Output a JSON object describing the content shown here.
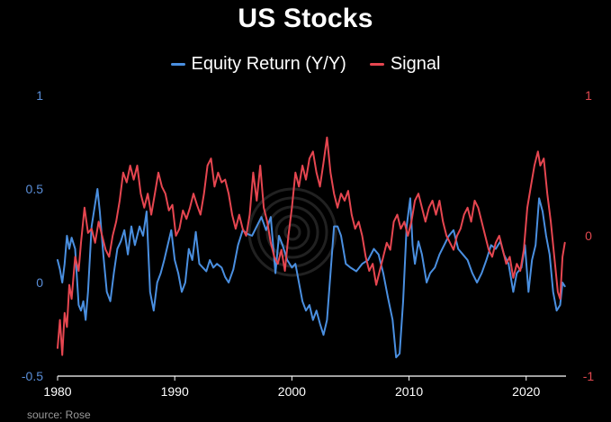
{
  "source": "source: Rose",
  "colors": {
    "background": "#000000",
    "equity": "#4a8fe0",
    "signal": "#e64650",
    "axis_left": "#5a8ed8",
    "axis_right": "#e0484f",
    "x_axis_text": "#ffffff"
  },
  "chart_data": {
    "type": "line",
    "title": "US Stocks",
    "legend": {
      "position": "top-center",
      "entries": [
        "Equity Return (Y/Y)",
        "Signal"
      ]
    },
    "x_ticks": [
      "1980",
      "1990",
      "2000",
      "2010",
      "2020"
    ],
    "x_tick_values": [
      1980,
      1990,
      2000,
      2010,
      2020
    ],
    "xlim": [
      1980,
      2023.4
    ],
    "y_left": {
      "ylim": [
        -0.5,
        1
      ],
      "ticks": [
        "-0.5",
        "0",
        "0.5",
        "1"
      ],
      "tick_values": [
        -0.5,
        0,
        0.5,
        1
      ]
    },
    "y_right": {
      "ylim": [
        -1,
        1
      ],
      "ticks": [
        "-1",
        "0",
        "1"
      ],
      "tick_values": [
        -1,
        0,
        1
      ]
    },
    "grid": false,
    "series": [
      {
        "name": "Equity Return (Y/Y)",
        "axis": "left",
        "points": [
          [
            1980.0,
            0.12
          ],
          [
            1980.2,
            0.07
          ],
          [
            1980.4,
            0.0
          ],
          [
            1980.6,
            0.1
          ],
          [
            1980.8,
            0.25
          ],
          [
            1981.0,
            0.18
          ],
          [
            1981.2,
            0.24
          ],
          [
            1981.5,
            0.18
          ],
          [
            1981.8,
            -0.12
          ],
          [
            1982.0,
            -0.15
          ],
          [
            1982.2,
            -0.1
          ],
          [
            1982.4,
            -0.2
          ],
          [
            1982.6,
            -0.05
          ],
          [
            1982.9,
            0.3
          ],
          [
            1983.2,
            0.42
          ],
          [
            1983.4,
            0.5
          ],
          [
            1983.6,
            0.38
          ],
          [
            1983.9,
            0.15
          ],
          [
            1984.2,
            -0.05
          ],
          [
            1984.5,
            -0.1
          ],
          [
            1984.8,
            0.05
          ],
          [
            1985.1,
            0.18
          ],
          [
            1985.4,
            0.22
          ],
          [
            1985.7,
            0.28
          ],
          [
            1986.0,
            0.15
          ],
          [
            1986.3,
            0.3
          ],
          [
            1986.6,
            0.2
          ],
          [
            1987.0,
            0.3
          ],
          [
            1987.3,
            0.25
          ],
          [
            1987.6,
            0.38
          ],
          [
            1987.9,
            -0.05
          ],
          [
            1988.2,
            -0.15
          ],
          [
            1988.5,
            0.0
          ],
          [
            1988.8,
            0.05
          ],
          [
            1989.1,
            0.12
          ],
          [
            1989.4,
            0.2
          ],
          [
            1989.7,
            0.28
          ],
          [
            1990.0,
            0.12
          ],
          [
            1990.3,
            0.05
          ],
          [
            1990.6,
            -0.05
          ],
          [
            1990.9,
            0.0
          ],
          [
            1991.2,
            0.18
          ],
          [
            1991.5,
            0.12
          ],
          [
            1991.8,
            0.27
          ],
          [
            1992.1,
            0.1
          ],
          [
            1992.4,
            0.08
          ],
          [
            1992.7,
            0.06
          ],
          [
            1993.0,
            0.12
          ],
          [
            1993.3,
            0.08
          ],
          [
            1993.6,
            0.1
          ],
          [
            1994.0,
            0.08
          ],
          [
            1994.3,
            0.03
          ],
          [
            1994.6,
            0.0
          ],
          [
            1995.0,
            0.07
          ],
          [
            1995.4,
            0.2
          ],
          [
            1995.8,
            0.28
          ],
          [
            1996.2,
            0.26
          ],
          [
            1996.6,
            0.25
          ],
          [
            1997.0,
            0.3
          ],
          [
            1997.4,
            0.35
          ],
          [
            1997.8,
            0.28
          ],
          [
            1998.2,
            0.35
          ],
          [
            1998.6,
            0.05
          ],
          [
            1998.9,
            0.25
          ],
          [
            1999.2,
            0.2
          ],
          [
            1999.6,
            0.12
          ],
          [
            2000.0,
            0.08
          ],
          [
            2000.3,
            0.1
          ],
          [
            2000.6,
            0.0
          ],
          [
            2000.9,
            -0.1
          ],
          [
            2001.2,
            -0.15
          ],
          [
            2001.5,
            -0.12
          ],
          [
            2001.8,
            -0.2
          ],
          [
            2002.1,
            -0.15
          ],
          [
            2002.4,
            -0.22
          ],
          [
            2002.7,
            -0.28
          ],
          [
            2003.0,
            -0.2
          ],
          [
            2003.3,
            0.05
          ],
          [
            2003.6,
            0.3
          ],
          [
            2003.9,
            0.3
          ],
          [
            2004.2,
            0.25
          ],
          [
            2004.6,
            0.1
          ],
          [
            2005.0,
            0.08
          ],
          [
            2005.5,
            0.06
          ],
          [
            2006.0,
            0.1
          ],
          [
            2006.5,
            0.12
          ],
          [
            2007.0,
            0.18
          ],
          [
            2007.4,
            0.15
          ],
          [
            2007.8,
            0.05
          ],
          [
            2008.2,
            -0.08
          ],
          [
            2008.6,
            -0.2
          ],
          [
            2008.9,
            -0.4
          ],
          [
            2009.2,
            -0.38
          ],
          [
            2009.5,
            -0.1
          ],
          [
            2009.8,
            0.3
          ],
          [
            2010.1,
            0.45
          ],
          [
            2010.3,
            0.2
          ],
          [
            2010.5,
            0.1
          ],
          [
            2010.8,
            0.22
          ],
          [
            2011.1,
            0.15
          ],
          [
            2011.5,
            0.0
          ],
          [
            2011.8,
            0.05
          ],
          [
            2012.2,
            0.08
          ],
          [
            2012.6,
            0.15
          ],
          [
            2013.0,
            0.2
          ],
          [
            2013.4,
            0.25
          ],
          [
            2013.8,
            0.28
          ],
          [
            2014.2,
            0.18
          ],
          [
            2014.6,
            0.15
          ],
          [
            2015.0,
            0.12
          ],
          [
            2015.4,
            0.05
          ],
          [
            2015.8,
            0.0
          ],
          [
            2016.2,
            0.05
          ],
          [
            2016.6,
            0.12
          ],
          [
            2017.0,
            0.2
          ],
          [
            2017.4,
            0.18
          ],
          [
            2017.8,
            0.22
          ],
          [
            2018.1,
            0.15
          ],
          [
            2018.5,
            0.1
          ],
          [
            2018.9,
            -0.05
          ],
          [
            2019.2,
            0.05
          ],
          [
            2019.6,
            0.08
          ],
          [
            2019.9,
            0.2
          ],
          [
            2020.2,
            -0.05
          ],
          [
            2020.5,
            0.12
          ],
          [
            2020.8,
            0.2
          ],
          [
            2021.1,
            0.45
          ],
          [
            2021.4,
            0.38
          ],
          [
            2021.7,
            0.25
          ],
          [
            2022.0,
            0.15
          ],
          [
            2022.3,
            -0.05
          ],
          [
            2022.6,
            -0.15
          ],
          [
            2022.9,
            -0.12
          ],
          [
            2023.1,
            0.0
          ],
          [
            2023.3,
            -0.02
          ]
        ]
      },
      {
        "name": "Signal",
        "axis": "right",
        "points": [
          [
            1980.0,
            -0.8
          ],
          [
            1980.2,
            -0.6
          ],
          [
            1980.4,
            -0.85
          ],
          [
            1980.6,
            -0.55
          ],
          [
            1980.8,
            -0.65
          ],
          [
            1981.0,
            -0.35
          ],
          [
            1981.2,
            -0.45
          ],
          [
            1981.5,
            -0.15
          ],
          [
            1981.8,
            -0.25
          ],
          [
            1982.0,
            -0.05
          ],
          [
            1982.3,
            0.2
          ],
          [
            1982.6,
            0.02
          ],
          [
            1982.9,
            0.05
          ],
          [
            1983.2,
            -0.05
          ],
          [
            1983.5,
            0.1
          ],
          [
            1983.8,
            0.0
          ],
          [
            1984.1,
            -0.1
          ],
          [
            1984.4,
            -0.15
          ],
          [
            1984.7,
            0.0
          ],
          [
            1985.0,
            0.1
          ],
          [
            1985.3,
            0.25
          ],
          [
            1985.6,
            0.45
          ],
          [
            1985.9,
            0.38
          ],
          [
            1986.2,
            0.5
          ],
          [
            1986.5,
            0.4
          ],
          [
            1986.8,
            0.5
          ],
          [
            1987.1,
            0.3
          ],
          [
            1987.4,
            0.2
          ],
          [
            1987.7,
            0.3
          ],
          [
            1988.0,
            0.15
          ],
          [
            1988.3,
            0.3
          ],
          [
            1988.6,
            0.45
          ],
          [
            1988.9,
            0.35
          ],
          [
            1989.2,
            0.3
          ],
          [
            1989.5,
            0.18
          ],
          [
            1989.8,
            0.22
          ],
          [
            1990.1,
            0.0
          ],
          [
            1990.4,
            0.05
          ],
          [
            1990.7,
            0.18
          ],
          [
            1991.0,
            0.12
          ],
          [
            1991.3,
            0.2
          ],
          [
            1991.6,
            0.3
          ],
          [
            1991.9,
            0.22
          ],
          [
            1992.2,
            0.15
          ],
          [
            1992.5,
            0.3
          ],
          [
            1992.8,
            0.5
          ],
          [
            1993.1,
            0.55
          ],
          [
            1993.4,
            0.35
          ],
          [
            1993.7,
            0.45
          ],
          [
            1994.0,
            0.38
          ],
          [
            1994.3,
            0.4
          ],
          [
            1994.6,
            0.3
          ],
          [
            1994.9,
            0.15
          ],
          [
            1995.2,
            0.05
          ],
          [
            1995.5,
            0.15
          ],
          [
            1995.8,
            0.05
          ],
          [
            1996.1,
            0.0
          ],
          [
            1996.4,
            0.15
          ],
          [
            1996.7,
            0.45
          ],
          [
            1997.0,
            0.25
          ],
          [
            1997.3,
            0.5
          ],
          [
            1997.6,
            0.2
          ],
          [
            1997.9,
            0.1
          ],
          [
            1998.2,
            -0.05
          ],
          [
            1998.5,
            -0.15
          ],
          [
            1998.8,
            -0.2
          ],
          [
            1999.1,
            -0.1
          ],
          [
            1999.4,
            -0.25
          ],
          [
            1999.7,
            0.0
          ],
          [
            2000.0,
            0.2
          ],
          [
            2000.3,
            0.45
          ],
          [
            2000.6,
            0.35
          ],
          [
            2000.9,
            0.5
          ],
          [
            2001.2,
            0.4
          ],
          [
            2001.5,
            0.55
          ],
          [
            2001.8,
            0.6
          ],
          [
            2002.1,
            0.45
          ],
          [
            2002.4,
            0.35
          ],
          [
            2002.7,
            0.52
          ],
          [
            2003.0,
            0.7
          ],
          [
            2003.3,
            0.45
          ],
          [
            2003.6,
            0.3
          ],
          [
            2003.9,
            0.2
          ],
          [
            2004.2,
            0.3
          ],
          [
            2004.5,
            0.25
          ],
          [
            2004.8,
            0.32
          ],
          [
            2005.1,
            0.15
          ],
          [
            2005.4,
            0.05
          ],
          [
            2005.7,
            0.1
          ],
          [
            2006.0,
            0.0
          ],
          [
            2006.3,
            -0.15
          ],
          [
            2006.6,
            -0.25
          ],
          [
            2006.9,
            -0.2
          ],
          [
            2007.2,
            -0.35
          ],
          [
            2007.5,
            -0.25
          ],
          [
            2007.8,
            -0.15
          ],
          [
            2008.1,
            -0.05
          ],
          [
            2008.4,
            -0.1
          ],
          [
            2008.7,
            0.1
          ],
          [
            2009.0,
            0.15
          ],
          [
            2009.3,
            0.05
          ],
          [
            2009.6,
            0.1
          ],
          [
            2009.9,
            0.0
          ],
          [
            2010.2,
            0.1
          ],
          [
            2010.5,
            0.25
          ],
          [
            2010.8,
            0.3
          ],
          [
            2011.1,
            0.2
          ],
          [
            2011.4,
            0.1
          ],
          [
            2011.7,
            0.2
          ],
          [
            2012.0,
            0.25
          ],
          [
            2012.3,
            0.15
          ],
          [
            2012.6,
            0.25
          ],
          [
            2012.9,
            0.1
          ],
          [
            2013.2,
            0.0
          ],
          [
            2013.5,
            -0.05
          ],
          [
            2013.8,
            -0.1
          ],
          [
            2014.1,
            0.0
          ],
          [
            2014.4,
            0.05
          ],
          [
            2014.7,
            0.15
          ],
          [
            2015.0,
            0.2
          ],
          [
            2015.3,
            0.1
          ],
          [
            2015.6,
            0.25
          ],
          [
            2015.9,
            0.2
          ],
          [
            2016.2,
            0.1
          ],
          [
            2016.5,
            0.0
          ],
          [
            2016.8,
            -0.1
          ],
          [
            2017.1,
            -0.15
          ],
          [
            2017.4,
            -0.05
          ],
          [
            2017.7,
            0.0
          ],
          [
            2018.0,
            -0.1
          ],
          [
            2018.3,
            -0.2
          ],
          [
            2018.6,
            -0.15
          ],
          [
            2018.9,
            -0.3
          ],
          [
            2019.2,
            -0.2
          ],
          [
            2019.5,
            -0.25
          ],
          [
            2019.8,
            -0.1
          ],
          [
            2020.1,
            0.2
          ],
          [
            2020.4,
            0.35
          ],
          [
            2020.7,
            0.5
          ],
          [
            2021.0,
            0.6
          ],
          [
            2021.2,
            0.5
          ],
          [
            2021.5,
            0.55
          ],
          [
            2021.8,
            0.3
          ],
          [
            2022.1,
            0.1
          ],
          [
            2022.4,
            -0.15
          ],
          [
            2022.7,
            -0.4
          ],
          [
            2022.9,
            -0.45
          ],
          [
            2023.1,
            -0.15
          ],
          [
            2023.3,
            -0.05
          ]
        ]
      }
    ]
  }
}
